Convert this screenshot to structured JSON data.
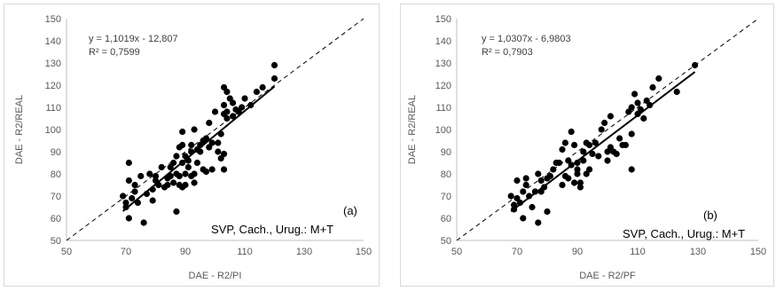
{
  "chart_data": [
    {
      "type": "scatter",
      "panel_tag": "(a)",
      "note": "SVP, Cach., Urug.: M+T",
      "xlabel": "DAE - R2/PI",
      "ylabel": "DAE - R2/REAL",
      "xlim": [
        50,
        150
      ],
      "ylim": [
        50,
        150
      ],
      "xticks": [
        "50",
        "70",
        "90",
        "110",
        "130",
        "150"
      ],
      "yticks": [
        "50",
        "60",
        "70",
        "80",
        "90",
        "100",
        "110",
        "120",
        "130",
        "140",
        "150"
      ],
      "equation": "y = 1,1019x - 12,807",
      "r_squared": "R² = 0,7599",
      "trendline": {
        "slope": 1.1019,
        "intercept": -12.807,
        "x_range": [
          69,
          120
        ]
      },
      "identity_line": true,
      "grid": false,
      "points": [
        [
          69,
          70
        ],
        [
          70,
          65
        ],
        [
          70,
          67
        ],
        [
          71,
          85
        ],
        [
          71,
          77
        ],
        [
          71,
          60
        ],
        [
          72,
          69
        ],
        [
          73,
          72
        ],
        [
          73,
          75
        ],
        [
          74,
          67
        ],
        [
          75,
          79
        ],
        [
          76,
          58
        ],
        [
          77,
          71
        ],
        [
          78,
          80
        ],
        [
          79,
          73
        ],
        [
          79,
          68
        ],
        [
          80,
          77
        ],
        [
          80,
          79
        ],
        [
          81,
          75
        ],
        [
          82,
          83
        ],
        [
          83,
          74
        ],
        [
          84,
          78
        ],
        [
          84,
          75
        ],
        [
          85,
          79
        ],
        [
          85,
          83
        ],
        [
          86,
          85
        ],
        [
          86,
          76
        ],
        [
          87,
          63
        ],
        [
          87,
          80
        ],
        [
          87,
          88
        ],
        [
          88,
          79
        ],
        [
          88,
          92
        ],
        [
          88,
          75
        ],
        [
          89,
          74
        ],
        [
          89,
          93
        ],
        [
          89,
          85
        ],
        [
          89,
          99
        ],
        [
          90,
          88
        ],
        [
          90,
          75
        ],
        [
          90,
          80
        ],
        [
          91,
          86
        ],
        [
          91,
          83
        ],
        [
          92,
          90
        ],
        [
          92,
          79
        ],
        [
          92,
          93
        ],
        [
          93,
          76
        ],
        [
          93,
          80
        ],
        [
          93,
          100
        ],
        [
          94,
          91
        ],
        [
          94,
          85
        ],
        [
          95,
          93
        ],
        [
          95,
          90
        ],
        [
          96,
          82
        ],
        [
          96,
          95
        ],
        [
          97,
          96
        ],
        [
          97,
          81
        ],
        [
          98,
          92
        ],
        [
          98,
          103
        ],
        [
          99,
          94
        ],
        [
          99,
          82
        ],
        [
          100,
          108
        ],
        [
          101,
          90
        ],
        [
          101,
          94
        ],
        [
          102,
          87
        ],
        [
          102,
          98
        ],
        [
          103,
          89
        ],
        [
          103,
          107
        ],
        [
          103,
          82
        ],
        [
          103,
          111
        ],
        [
          103,
          119
        ],
        [
          104,
          108
        ],
        [
          104,
          105
        ],
        [
          104,
          117
        ],
        [
          105,
          114
        ],
        [
          106,
          106
        ],
        [
          106,
          112
        ],
        [
          107,
          109
        ],
        [
          108,
          108
        ],
        [
          109,
          110
        ],
        [
          110,
          114
        ],
        [
          112,
          111
        ],
        [
          114,
          117
        ],
        [
          116,
          119
        ],
        [
          120,
          129
        ],
        [
          120,
          123
        ]
      ]
    },
    {
      "type": "scatter",
      "panel_tag": "(b)",
      "note": "SVP, Cach., Urug.: M+T",
      "xlabel": "DAE - R2/PF",
      "ylabel": "DAE - R2/REAL",
      "xlim": [
        50,
        150
      ],
      "ylim": [
        50,
        150
      ],
      "xticks": [
        "50",
        "70",
        "90",
        "110",
        "130",
        "150"
      ],
      "yticks": [
        "50",
        "60",
        "70",
        "80",
        "90",
        "100",
        "110",
        "120",
        "130",
        "140",
        "150"
      ],
      "equation": "y = 1,0307x - 6,9803",
      "r_squared": "R² = 0,7903",
      "trendline": {
        "slope": 1.0307,
        "intercept": -6.9803,
        "x_range": [
          68,
          129
        ]
      },
      "identity_line": true,
      "grid": false,
      "points": [
        [
          68,
          70
        ],
        [
          69,
          66
        ],
        [
          69,
          64
        ],
        [
          70,
          69
        ],
        [
          70,
          77
        ],
        [
          71,
          67
        ],
        [
          72,
          72
        ],
        [
          72,
          60
        ],
        [
          73,
          78
        ],
        [
          73,
          75
        ],
        [
          74,
          70
        ],
        [
          75,
          65
        ],
        [
          76,
          72
        ],
        [
          77,
          58
        ],
        [
          77,
          80
        ],
        [
          78,
          72
        ],
        [
          78,
          77
        ],
        [
          79,
          74
        ],
        [
          80,
          63
        ],
        [
          80,
          78
        ],
        [
          81,
          79
        ],
        [
          82,
          82
        ],
        [
          83,
          85
        ],
        [
          84,
          85
        ],
        [
          85,
          91
        ],
        [
          85,
          75
        ],
        [
          86,
          79
        ],
        [
          86,
          94
        ],
        [
          87,
          86
        ],
        [
          87,
          78
        ],
        [
          88,
          99
        ],
        [
          88,
          84
        ],
        [
          89,
          93
        ],
        [
          89,
          76
        ],
        [
          90,
          80
        ],
        [
          90,
          82
        ],
        [
          90,
          85
        ],
        [
          91,
          74
        ],
        [
          91,
          76
        ],
        [
          92,
          90
        ],
        [
          92,
          86
        ],
        [
          93,
          94
        ],
        [
          93,
          80
        ],
        [
          94,
          93
        ],
        [
          94,
          82
        ],
        [
          95,
          89
        ],
        [
          96,
          94
        ],
        [
          97,
          88
        ],
        [
          98,
          100
        ],
        [
          99,
          103
        ],
        [
          100,
          90
        ],
        [
          100,
          86
        ],
        [
          101,
          92
        ],
        [
          101,
          106
        ],
        [
          102,
          90
        ],
        [
          103,
          89
        ],
        [
          104,
          96
        ],
        [
          105,
          93
        ],
        [
          106,
          93
        ],
        [
          107,
          108
        ],
        [
          108,
          110
        ],
        [
          108,
          98
        ],
        [
          108,
          82
        ],
        [
          109,
          116
        ],
        [
          110,
          112
        ],
        [
          110,
          107
        ],
        [
          111,
          109
        ],
        [
          112,
          105
        ],
        [
          113,
          113
        ],
        [
          114,
          111
        ],
        [
          115,
          119
        ],
        [
          117,
          123
        ],
        [
          123,
          117
        ],
        [
          129,
          129
        ]
      ]
    }
  ]
}
